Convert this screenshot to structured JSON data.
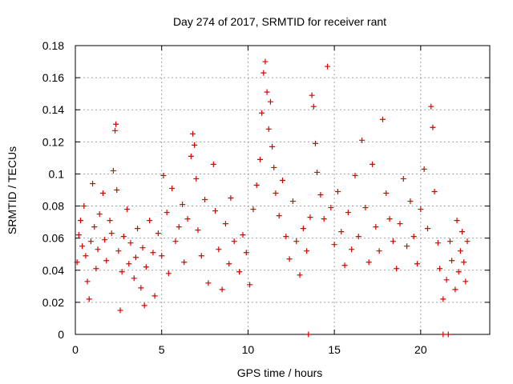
{
  "chart_data": {
    "type": "scatter",
    "title": "Day 274 of 2017, SRMTID for receiver rant",
    "xlabel": "GPS time / hours",
    "ylabel": "SRMTID / TECUs",
    "xlim": [
      0,
      24
    ],
    "ylim": [
      0,
      0.18
    ],
    "x_ticks": [
      0,
      5,
      10,
      15,
      20
    ],
    "x_tick_labels": [
      "0",
      "5",
      "10",
      "15",
      "20"
    ],
    "y_ticks": [
      0,
      0.02,
      0.04,
      0.06,
      0.08,
      0.1,
      0.12,
      0.14,
      0.16,
      0.18
    ],
    "y_tick_labels": [
      "0",
      "0.02",
      "0.04",
      "0.06",
      "0.08",
      "0.1",
      "0.12",
      "0.14",
      "0.16",
      "0.18"
    ],
    "grid": true,
    "marker": "+",
    "colors": {
      "points": "#dd0000",
      "grid": "#a0a0a0",
      "axes": "#000000"
    },
    "series": [
      {
        "name": "SRMTID",
        "points": [
          [
            0.1,
            0.045
          ],
          [
            0.2,
            0.062
          ],
          [
            0.3,
            0.071
          ],
          [
            0.4,
            0.055
          ],
          [
            0.5,
            0.08
          ],
          [
            0.6,
            0.049
          ],
          [
            0.7,
            0.033
          ],
          [
            0.8,
            0.022
          ],
          [
            0.9,
            0.058
          ],
          [
            1.0,
            0.094
          ],
          [
            1.1,
            0.067
          ],
          [
            1.2,
            0.041
          ],
          [
            1.3,
            0.053
          ],
          [
            1.4,
            0.075
          ],
          [
            1.6,
            0.088
          ],
          [
            1.7,
            0.059
          ],
          [
            1.8,
            0.046
          ],
          [
            2.0,
            0.071
          ],
          [
            2.1,
            0.063
          ],
          [
            2.2,
            0.102
          ],
          [
            2.3,
            0.127
          ],
          [
            2.35,
            0.131
          ],
          [
            2.4,
            0.09
          ],
          [
            2.5,
            0.052
          ],
          [
            2.6,
            0.015
          ],
          [
            2.7,
            0.039
          ],
          [
            2.8,
            0.061
          ],
          [
            3.0,
            0.078
          ],
          [
            3.1,
            0.044
          ],
          [
            3.2,
            0.057
          ],
          [
            3.4,
            0.035
          ],
          [
            3.5,
            0.048
          ],
          [
            3.6,
            0.066
          ],
          [
            3.8,
            0.029
          ],
          [
            3.9,
            0.054
          ],
          [
            4.0,
            0.018
          ],
          [
            4.1,
            0.042
          ],
          [
            4.3,
            0.071
          ],
          [
            4.5,
            0.051
          ],
          [
            4.6,
            0.024
          ],
          [
            4.8,
            0.063
          ],
          [
            5.0,
            0.049
          ],
          [
            5.1,
            0.099
          ],
          [
            5.3,
            0.076
          ],
          [
            5.4,
            0.038
          ],
          [
            5.6,
            0.091
          ],
          [
            5.8,
            0.058
          ],
          [
            6.0,
            0.067
          ],
          [
            6.2,
            0.081
          ],
          [
            6.3,
            0.045
          ],
          [
            6.5,
            0.072
          ],
          [
            6.7,
            0.111
          ],
          [
            6.8,
            0.125
          ],
          [
            6.9,
            0.118
          ],
          [
            7.0,
            0.097
          ],
          [
            7.1,
            0.065
          ],
          [
            7.3,
            0.049
          ],
          [
            7.5,
            0.084
          ],
          [
            7.7,
            0.032
          ],
          [
            8.0,
            0.106
          ],
          [
            8.1,
            0.077
          ],
          [
            8.3,
            0.053
          ],
          [
            8.5,
            0.028
          ],
          [
            8.7,
            0.069
          ],
          [
            8.9,
            0.044
          ],
          [
            9.0,
            0.085
          ],
          [
            9.2,
            0.058
          ],
          [
            9.5,
            0.039
          ],
          [
            9.7,
            0.062
          ],
          [
            9.9,
            0.051
          ],
          [
            10.1,
            0.031
          ],
          [
            10.3,
            0.078
          ],
          [
            10.5,
            0.093
          ],
          [
            10.7,
            0.109
          ],
          [
            10.8,
            0.138
          ],
          [
            10.9,
            0.163
          ],
          [
            11.0,
            0.17
          ],
          [
            11.1,
            0.151
          ],
          [
            11.2,
            0.128
          ],
          [
            11.3,
            0.145
          ],
          [
            11.4,
            0.117
          ],
          [
            11.5,
            0.104
          ],
          [
            11.6,
            0.088
          ],
          [
            11.8,
            0.074
          ],
          [
            12.0,
            0.096
          ],
          [
            12.2,
            0.061
          ],
          [
            12.4,
            0.047
          ],
          [
            12.6,
            0.083
          ],
          [
            12.8,
            0.058
          ],
          [
            13.0,
            0.037
          ],
          [
            13.2,
            0.066
          ],
          [
            13.4,
            0.052
          ],
          [
            13.6,
            0.073
          ],
          [
            13.7,
            0.149
          ],
          [
            13.8,
            0.142
          ],
          [
            13.9,
            0.119
          ],
          [
            14.0,
            0.101
          ],
          [
            14.2,
            0.087
          ],
          [
            14.4,
            0.072
          ],
          [
            14.6,
            0.167
          ],
          [
            14.8,
            0.079
          ],
          [
            15.0,
            0.056
          ],
          [
            15.2,
            0.089
          ],
          [
            15.4,
            0.064
          ],
          [
            15.6,
            0.043
          ],
          [
            15.8,
            0.076
          ],
          [
            16.0,
            0.053
          ],
          [
            16.2,
            0.099
          ],
          [
            16.4,
            0.061
          ],
          [
            16.6,
            0.121
          ],
          [
            16.8,
            0.079
          ],
          [
            17.0,
            0.045
          ],
          [
            17.2,
            0.106
          ],
          [
            17.4,
            0.067
          ],
          [
            17.6,
            0.052
          ],
          [
            17.8,
            0.134
          ],
          [
            18.0,
            0.088
          ],
          [
            18.2,
            0.072
          ],
          [
            18.4,
            0.058
          ],
          [
            18.6,
            0.041
          ],
          [
            18.8,
            0.069
          ],
          [
            19.0,
            0.097
          ],
          [
            19.2,
            0.055
          ],
          [
            19.4,
            0.083
          ],
          [
            19.6,
            0.061
          ],
          [
            19.8,
            0.044
          ],
          [
            20.0,
            0.078
          ],
          [
            20.2,
            0.103
          ],
          [
            20.4,
            0.066
          ],
          [
            20.6,
            0.142
          ],
          [
            20.7,
            0.129
          ],
          [
            20.8,
            0.089
          ],
          [
            21.0,
            0.057
          ],
          [
            21.1,
            0.041
          ],
          [
            21.3,
            0.022
          ],
          [
            21.5,
            0.034
          ],
          [
            21.7,
            0.058
          ],
          [
            21.8,
            0.046
          ],
          [
            22.0,
            0.028
          ],
          [
            22.1,
            0.071
          ],
          [
            22.2,
            0.039
          ],
          [
            22.3,
            0.052
          ],
          [
            22.4,
            0.064
          ],
          [
            22.5,
            0.045
          ],
          [
            22.6,
            0.033
          ],
          [
            22.7,
            0.058
          ],
          [
            13.5,
            0.0
          ],
          [
            21.3,
            0.0
          ],
          [
            21.6,
            0.0
          ]
        ]
      }
    ]
  }
}
